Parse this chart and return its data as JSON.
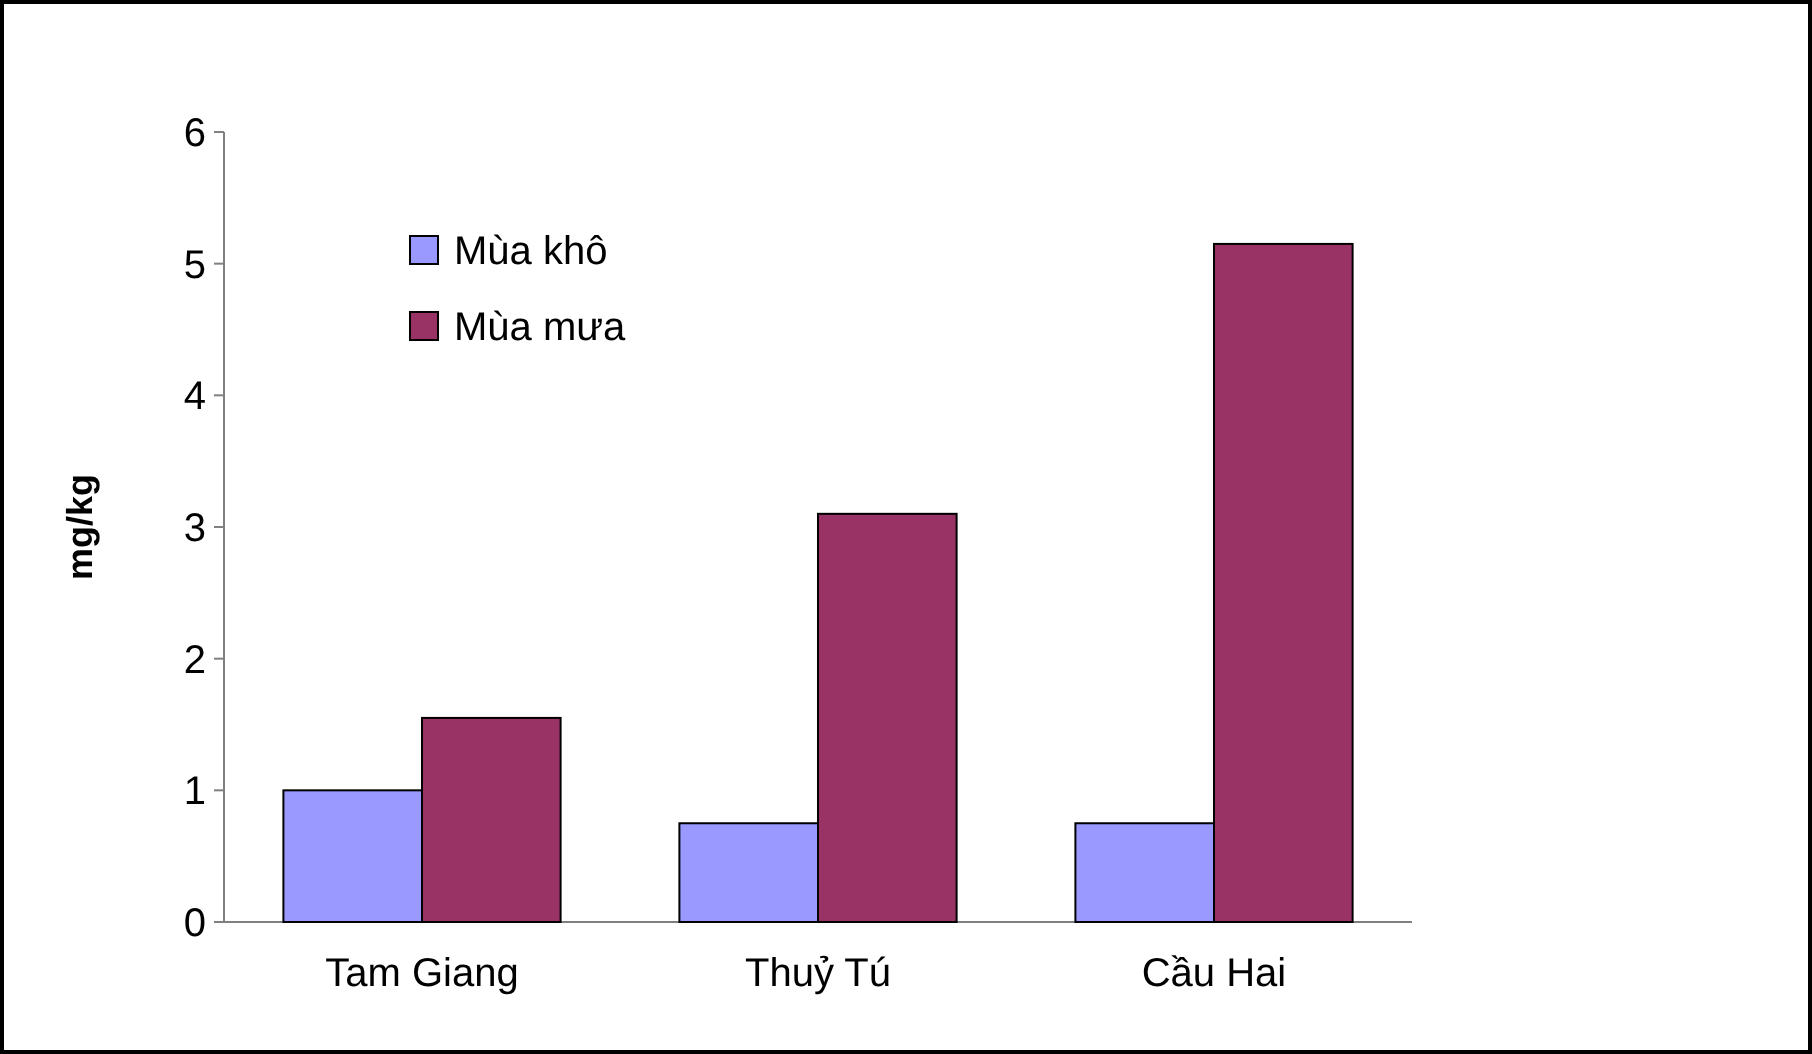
{
  "chart_data": {
    "type": "bar",
    "ylabel": "mg/kg",
    "categories": [
      "Tam Giang",
      "Thuỷ Tú",
      "Cầu Hai"
    ],
    "series": [
      {
        "name": "Mùa khô",
        "color": "#9999ff",
        "values": [
          1.0,
          0.75,
          0.75
        ]
      },
      {
        "name": "Mùa mưa",
        "color": "#993366",
        "values": [
          1.55,
          3.1,
          5.15
        ]
      }
    ],
    "ylim": [
      0,
      6
    ],
    "yticks": [
      0,
      1,
      2,
      3,
      4,
      5,
      6
    ],
    "grid": false,
    "legend": "top left"
  }
}
